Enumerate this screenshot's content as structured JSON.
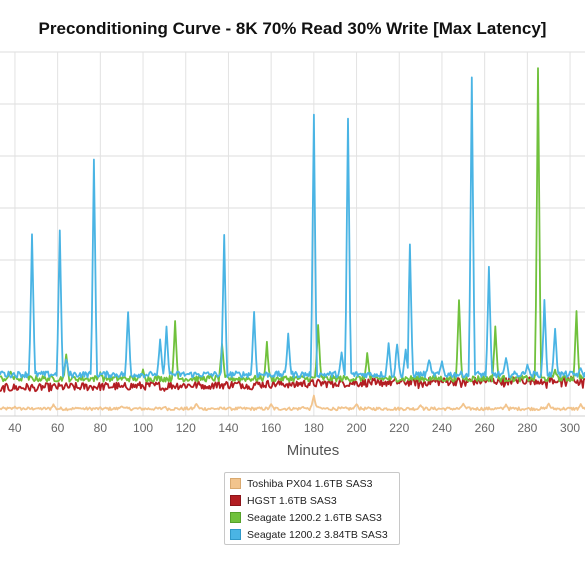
{
  "chart_data": {
    "type": "line",
    "title": "Preconditioning Curve - 8K 70% Read 30% Write [Max Latency]",
    "xlabel": "Minutes",
    "ylabel": "",
    "xlim": [
      33,
      307
    ],
    "ylim": [
      0,
      350
    ],
    "x_ticks": [
      40,
      60,
      80,
      100,
      120,
      140,
      160,
      180,
      200,
      220,
      240,
      260,
      280,
      300
    ],
    "grid": true,
    "legend_position": "bottom-center",
    "series": [
      {
        "name": "Toshiba PX04 1.6TB SAS3",
        "color": "#f2c48d",
        "base": 7,
        "noise": 1.5,
        "points": [
          [
            40,
            9
          ],
          [
            50,
            7.5
          ],
          [
            58,
            11
          ],
          [
            70,
            8
          ],
          [
            90,
            10
          ],
          [
            110,
            9
          ],
          [
            125,
            12
          ],
          [
            140,
            8
          ],
          [
            160,
            11
          ],
          [
            175,
            9
          ],
          [
            180,
            20
          ],
          [
            182,
            9
          ],
          [
            200,
            12
          ],
          [
            230,
            11
          ],
          [
            250,
            12
          ],
          [
            270,
            11
          ],
          [
            290,
            12
          ],
          [
            305,
            11
          ]
        ]
      },
      {
        "name": "HGST 1.6TB SAS3",
        "color": "#b31d22",
        "base": 27,
        "noise": 4,
        "points": [
          [
            33,
            22
          ],
          [
            50,
            25
          ],
          [
            70,
            27
          ],
          [
            90,
            28
          ],
          [
            110,
            26
          ],
          [
            130,
            29
          ],
          [
            150,
            28
          ],
          [
            170,
            32
          ],
          [
            190,
            33
          ],
          [
            210,
            34
          ],
          [
            230,
            33
          ],
          [
            250,
            35
          ],
          [
            270,
            35
          ],
          [
            288,
            34
          ],
          [
            297,
            36
          ],
          [
            305,
            35
          ]
        ]
      },
      {
        "name": "Seagate 1200.2 1.6TB SAS3",
        "color": "#70c13c",
        "base": 36,
        "noise": 3,
        "points": [
          [
            38,
            43
          ],
          [
            45,
            41
          ],
          [
            64,
            58
          ],
          [
            80,
            42
          ],
          [
            100,
            44
          ],
          [
            115,
            90
          ],
          [
            137,
            70
          ],
          [
            158,
            70
          ],
          [
            182,
            88
          ],
          [
            205,
            60
          ],
          [
            248,
            112
          ],
          [
            265,
            86
          ],
          [
            285,
            335
          ],
          [
            293,
            45
          ],
          [
            303,
            100
          ],
          [
            305,
            38
          ]
        ]
      },
      {
        "name": "Seagate 1200.2 3.84TB SAS3",
        "color": "#4ab4e4",
        "base": 40,
        "noise": 3,
        "points": [
          [
            34,
            43
          ],
          [
            48,
            175
          ],
          [
            61,
            179
          ],
          [
            64,
            55
          ],
          [
            77,
            248
          ],
          [
            93,
            100
          ],
          [
            105,
            40
          ],
          [
            108,
            73
          ],
          [
            111,
            85
          ],
          [
            138,
            173
          ],
          [
            152,
            100
          ],
          [
            168,
            80
          ],
          [
            180,
            291
          ],
          [
            193,
            60
          ],
          [
            196,
            286
          ],
          [
            215,
            70
          ],
          [
            219,
            70
          ],
          [
            223,
            64
          ],
          [
            225,
            164
          ],
          [
            234,
            55
          ],
          [
            240,
            52
          ],
          [
            254,
            325
          ],
          [
            262,
            142
          ],
          [
            270,
            55
          ],
          [
            280,
            50
          ],
          [
            288,
            111
          ],
          [
            293,
            85
          ],
          [
            305,
            45
          ]
        ]
      }
    ]
  }
}
